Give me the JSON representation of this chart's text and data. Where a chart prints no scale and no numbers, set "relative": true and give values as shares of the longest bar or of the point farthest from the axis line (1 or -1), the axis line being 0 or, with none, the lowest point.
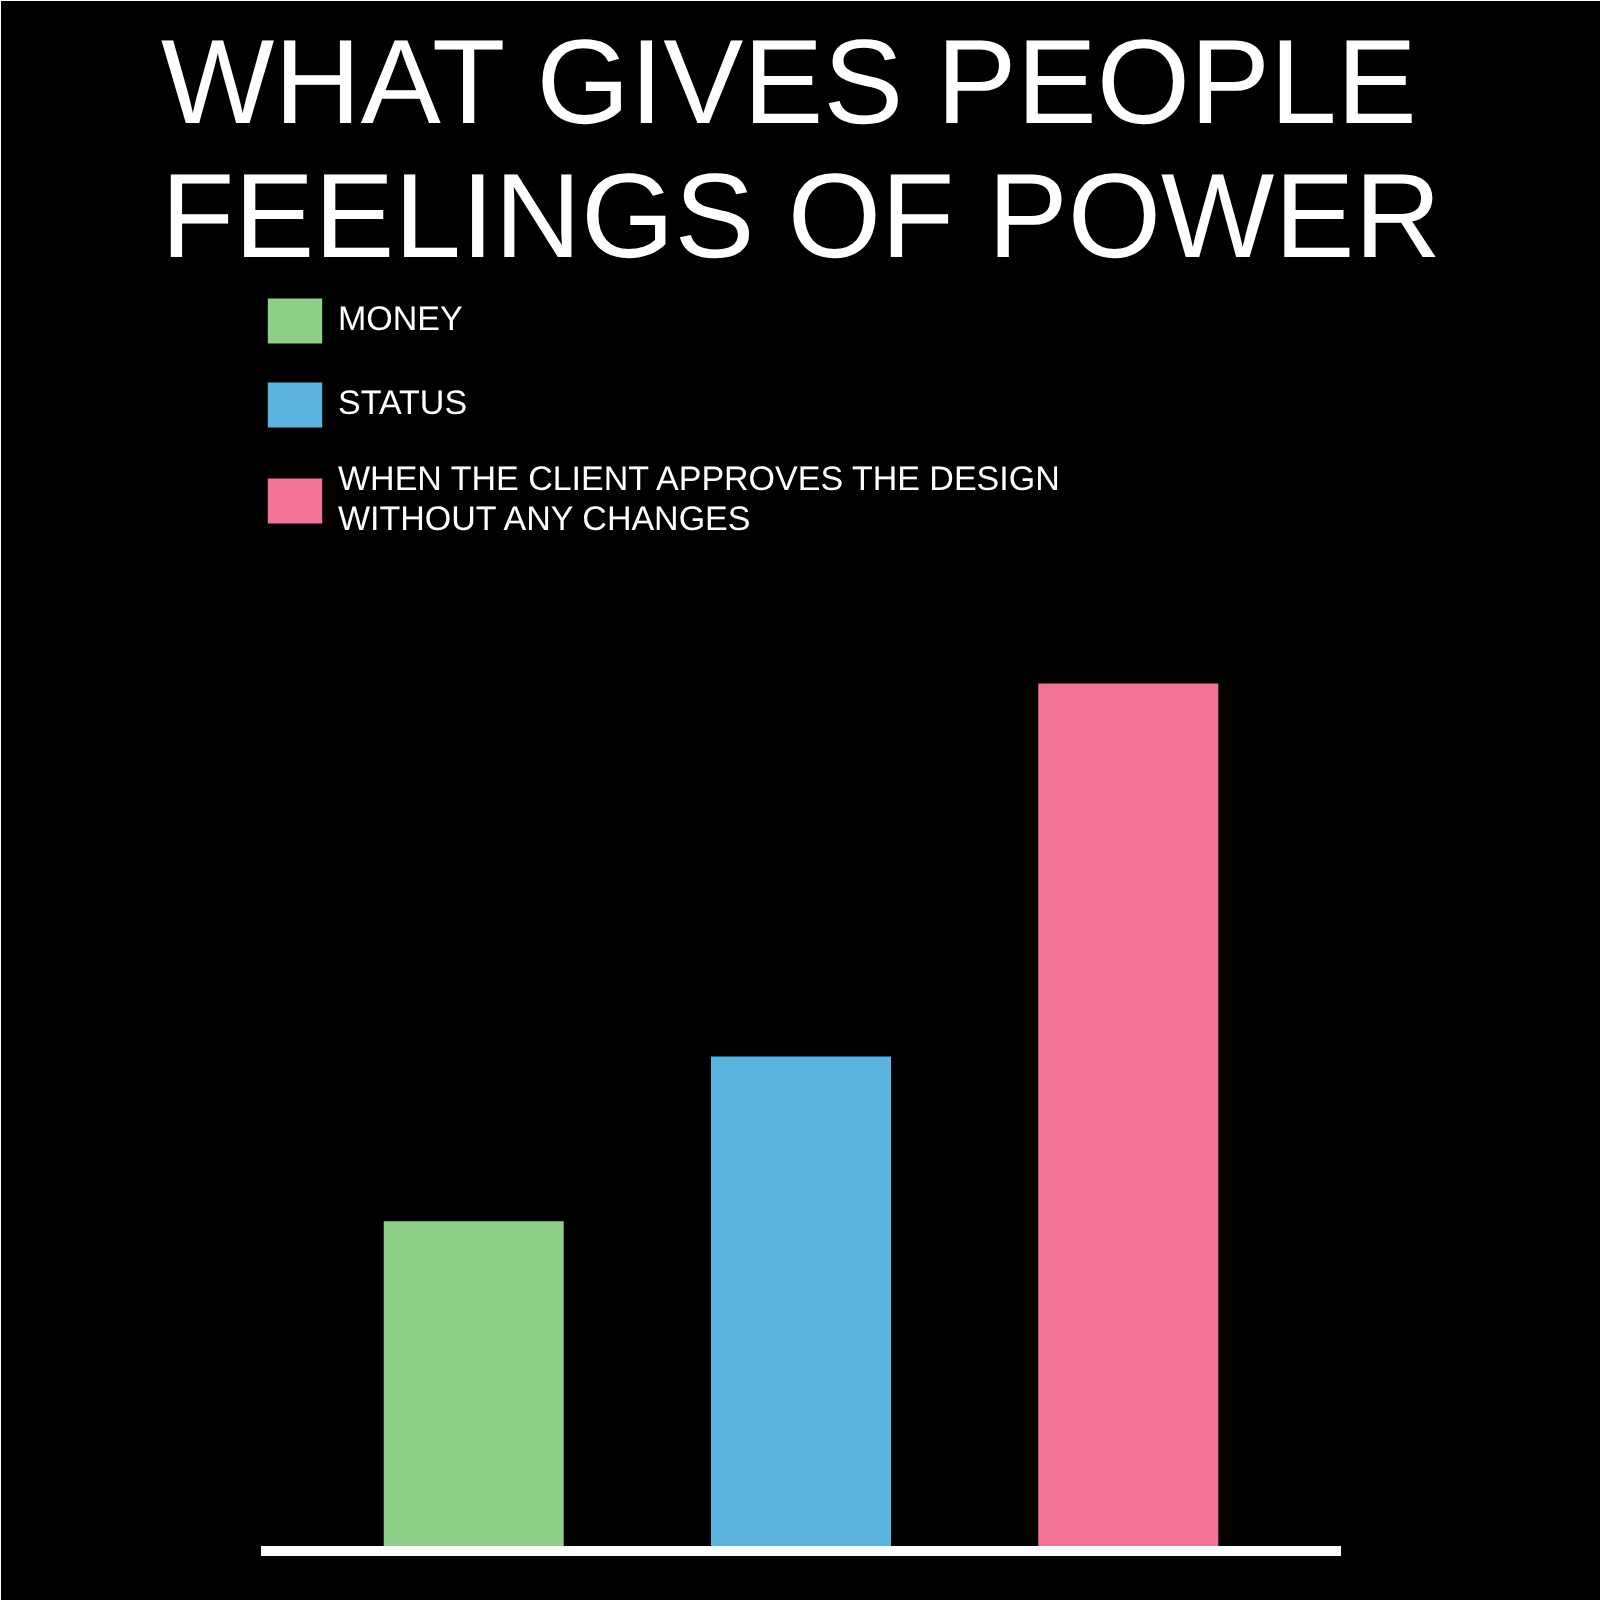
{
  "chart_data": {
    "type": "bar",
    "title": "WHAT GIVES PEOPLE FEELINGS OF POWER",
    "relative": true,
    "stacked": true,
    "categories": [
      null,
      null,
      null
    ],
    "series": [
      {
        "name": "MONEY",
        "color": "#8fcf87",
        "values": [
          0.38,
          null,
          null
        ]
      },
      {
        "name": "STATUS",
        "color": "#5ab4de",
        "values": [
          null,
          0.57,
          null
        ]
      },
      {
        "name": "WHEN THE CLIENT APPROVES THE DESIGN WITHOUT ANY CHANGES",
        "color": "#f37396",
        "values": [
          null,
          null,
          1
        ]
      }
    ],
    "legend": "top left",
    "grid": false
  }
}
